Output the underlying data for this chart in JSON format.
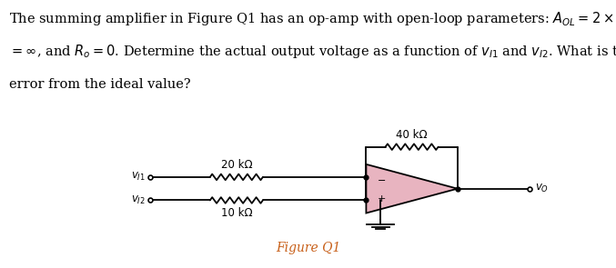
{
  "fig_label": "Figure Q1",
  "fig_label_color": "#c8601a",
  "bg_color": "#ffffff",
  "circuit": {
    "v1_label": "v_{I1}",
    "v2_label": "v_{I2}",
    "vo_label": "v_O",
    "r1_label": "20 kΩ",
    "r2_label": "10 kΩ",
    "rf_label": "40 kΩ",
    "opamp_fill": "#e8b4c0",
    "opamp_outline": "#000000",
    "wire_color": "#000000",
    "resistor_color": "#000000"
  },
  "title_lines": [
    "The summing amplifier in Figure Q1 has an op-amp with open-loop parameters: ",
    "= ∞, and R",
    "error from the ideal value?"
  ],
  "font_size_title": 10.5,
  "font_size_circuit": 9,
  "font_size_label": 8.5
}
